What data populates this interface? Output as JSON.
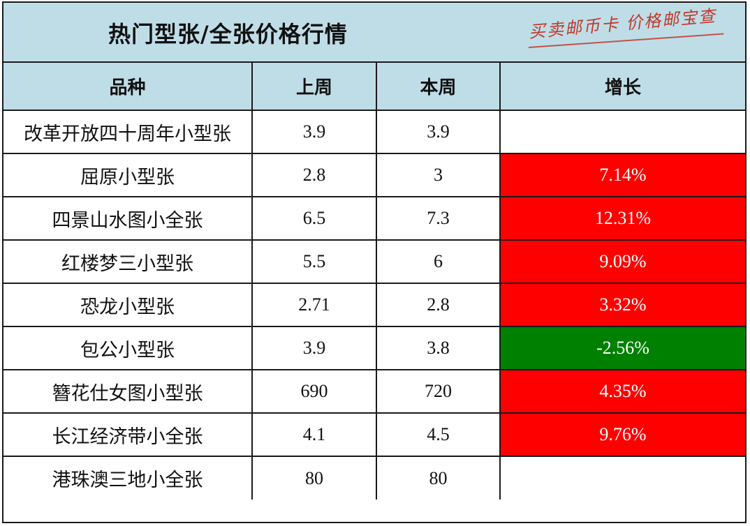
{
  "header": {
    "title": "热门型张/全张价格行情",
    "watermark": "买卖邮币卡 价格邮宝查"
  },
  "table": {
    "columns": [
      "品种",
      "上周",
      "本周",
      "增长"
    ],
    "rows": [
      {
        "name": "改革开放四十周年小型张",
        "last_week": "3.9",
        "this_week": "3.9",
        "growth": "",
        "trend": "none"
      },
      {
        "name": "屈原小型张",
        "last_week": "2.8",
        "this_week": "3",
        "growth": "7.14%",
        "trend": "up"
      },
      {
        "name": "四景山水图小全张",
        "last_week": "6.5",
        "this_week": "7.3",
        "growth": "12.31%",
        "trend": "up"
      },
      {
        "name": "红楼梦三小型张",
        "last_week": "5.5",
        "this_week": "6",
        "growth": "9.09%",
        "trend": "up"
      },
      {
        "name": "恐龙小型张",
        "last_week": "2.71",
        "this_week": "2.8",
        "growth": "3.32%",
        "trend": "up"
      },
      {
        "name": "包公小型张",
        "last_week": "3.9",
        "this_week": "3.8",
        "growth": "-2.56%",
        "trend": "down"
      },
      {
        "name": "簪花仕女图小型张",
        "last_week": "690",
        "this_week": "720",
        "growth": "4.35%",
        "trend": "up"
      },
      {
        "name": "长江经济带小全张",
        "last_week": "4.1",
        "this_week": "4.5",
        "growth": "9.76%",
        "trend": "up"
      },
      {
        "name": "港珠澳三地小全张",
        "last_week": "80",
        "this_week": "80",
        "growth": "",
        "trend": "none"
      }
    ]
  },
  "colors": {
    "header_bg": "#bfdde7",
    "up": "#ff0000",
    "down": "#008000",
    "watermark": "#c0392b"
  }
}
